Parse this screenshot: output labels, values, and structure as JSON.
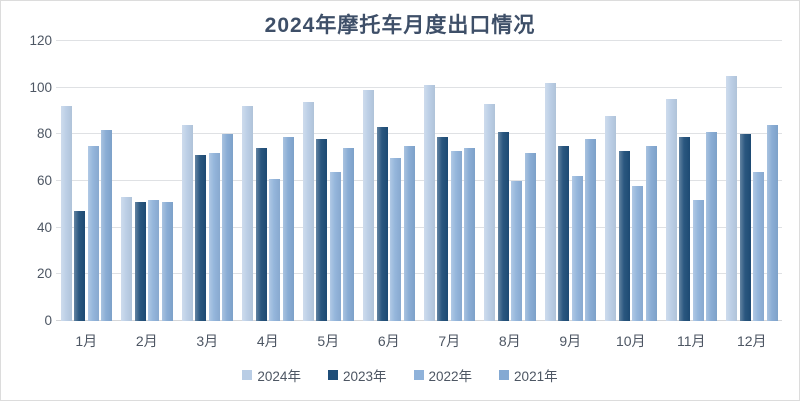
{
  "chart_data": {
    "type": "bar",
    "title": "2024年摩托车月度出口情况",
    "categories": [
      "1月",
      "2月",
      "3月",
      "4月",
      "5月",
      "6月",
      "7月",
      "8月",
      "9月",
      "10月",
      "11月",
      "12月"
    ],
    "series": [
      {
        "name": "2024年",
        "color": "#B9CDE5",
        "values": [
          92,
          53,
          84,
          92,
          94,
          99,
          101,
          93,
          102,
          88,
          95,
          105
        ]
      },
      {
        "name": "2023年",
        "color": "#1F4E79",
        "values": [
          47,
          51,
          71,
          74,
          78,
          83,
          79,
          81,
          75,
          73,
          79,
          80
        ]
      },
      {
        "name": "2022年",
        "color": "#8FB2DA",
        "values": [
          75,
          52,
          72,
          61,
          64,
          70,
          73,
          60,
          62,
          58,
          52,
          64
        ]
      },
      {
        "name": "2021年",
        "color": "#84A9D3",
        "values": [
          82,
          51,
          80,
          79,
          74,
          75,
          74,
          72,
          78,
          75,
          81,
          84
        ]
      }
    ],
    "ylim": [
      0,
      120
    ],
    "yticks": [
      0,
      20,
      40,
      60,
      80,
      100,
      120
    ],
    "grid": true,
    "legend_position": "bottom",
    "title_color": "#3e4f68",
    "gridline_color": "#dfe1e4"
  }
}
